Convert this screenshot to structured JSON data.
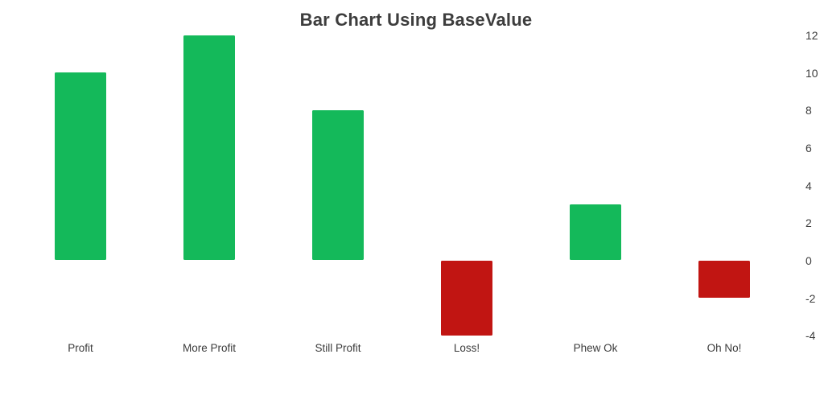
{
  "chart_data": {
    "type": "bar",
    "title": "Bar Chart Using BaseValue",
    "categories": [
      "Profit",
      "More Profit",
      "Still Profit",
      "Loss!",
      "Phew Ok",
      "Oh No!"
    ],
    "values": [
      10,
      12,
      8,
      -4,
      3,
      -2
    ],
    "base_value": 0,
    "xlabel": "",
    "ylabel": "",
    "y_ticks": [
      12,
      10,
      8,
      6,
      4,
      2,
      0,
      -2,
      -4
    ],
    "ylim": [
      -4,
      12
    ],
    "y_axis_side": "right",
    "grid": false,
    "legend_position": "none",
    "colors": {
      "positive_bar": "#14b95a",
      "negative_bar": "#c11512",
      "title_text": "#3d3d3d",
      "axis_text": "#3d3d3d",
      "background": "#ffffff"
    }
  }
}
